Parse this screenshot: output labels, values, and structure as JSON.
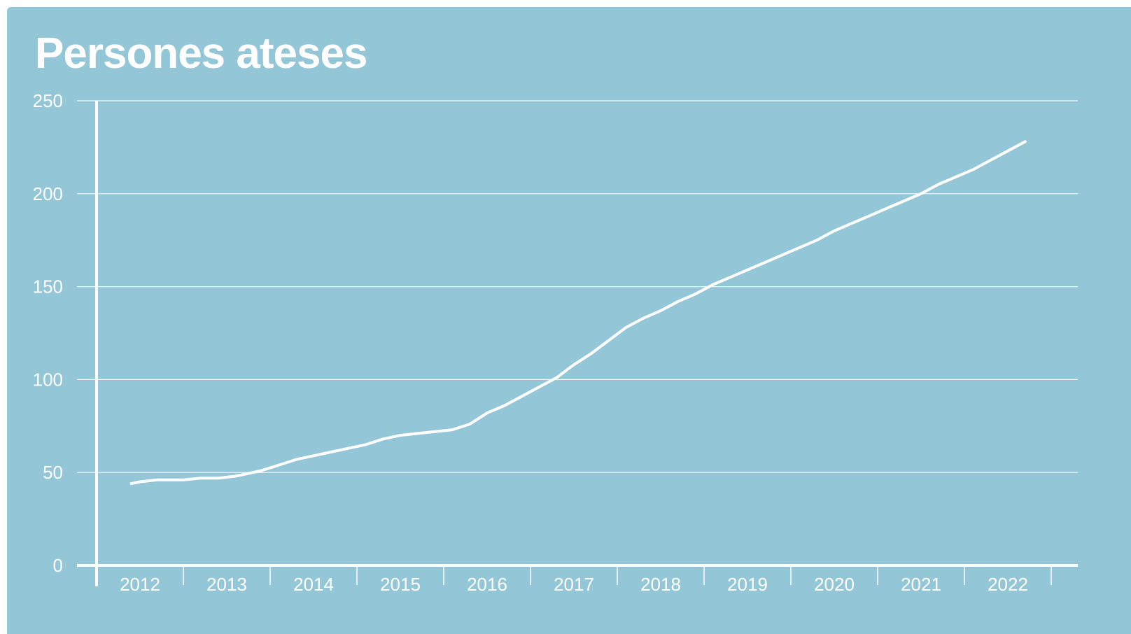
{
  "colors": {
    "background": "#93c6d7",
    "foreground": "#ffffff"
  },
  "chart_data": {
    "type": "line",
    "title": "Persones ateses",
    "xlabel": "",
    "ylabel": "",
    "ylim": [
      0,
      250
    ],
    "xlim": [
      2011.5,
      2022.8
    ],
    "y_ticks": [
      0,
      50,
      100,
      150,
      200,
      250
    ],
    "x_ticks": [
      "2012",
      "2013",
      "2014",
      "2015",
      "2016",
      "2017",
      "2018",
      "2019",
      "2020",
      "2021",
      "2022"
    ],
    "grid": "horizontal",
    "legend": "none",
    "series": [
      {
        "x": [
          2011.9,
          2012.0,
          2012.2,
          2012.5,
          2012.7,
          2012.9,
          2013.1,
          2013.2,
          2013.4,
          2013.6,
          2013.8,
          2014.0,
          2014.2,
          2014.4,
          2014.6,
          2014.8,
          2015.0,
          2015.2,
          2015.4,
          2015.6,
          2015.8,
          2016.0,
          2016.2,
          2016.4,
          2016.6,
          2016.8,
          2017.0,
          2017.2,
          2017.4,
          2017.6,
          2017.8,
          2018.0,
          2018.2,
          2018.4,
          2018.6,
          2018.8,
          2019.0,
          2019.2,
          2019.4,
          2019.6,
          2019.8,
          2020.0,
          2020.2,
          2020.4,
          2020.6,
          2020.8,
          2021.0,
          2021.2,
          2021.4,
          2021.6,
          2021.8,
          2022.0,
          2022.2
        ],
        "y": [
          44,
          45,
          46,
          46,
          47,
          47,
          48,
          49,
          51,
          54,
          57,
          59,
          61,
          63,
          65,
          68,
          70,
          71,
          72,
          73,
          76,
          82,
          86,
          91,
          96,
          101,
          108,
          114,
          121,
          128,
          133,
          137,
          142,
          146,
          151,
          155,
          159,
          163,
          167,
          171,
          175,
          180,
          184,
          188,
          192,
          196,
          200,
          205,
          209,
          213,
          218,
          223,
          228
        ]
      }
    ]
  }
}
